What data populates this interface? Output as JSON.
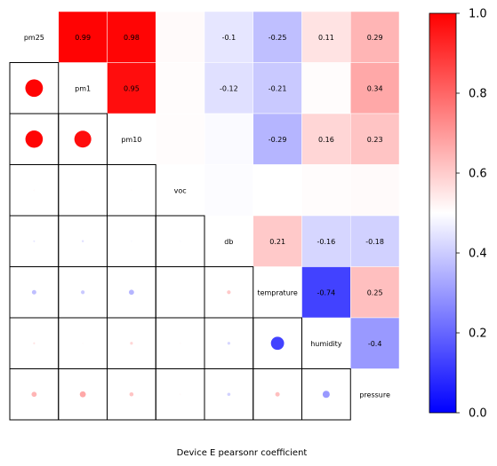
{
  "chart_data": {
    "type": "heatmap",
    "title": "",
    "xlabel": "Device E pearsonr coefficient",
    "ylabel": "",
    "variables": [
      "pm25",
      "pm1",
      "pm10",
      "voc",
      "db",
      "temprature",
      "humidity",
      "pressure"
    ],
    "value_labels": [
      {
        "row": 0,
        "col": 1,
        "value": 0.99,
        "label": "0.99"
      },
      {
        "row": 0,
        "col": 2,
        "value": 0.98,
        "label": "0.98"
      },
      {
        "row": 0,
        "col": 4,
        "value": -0.1,
        "label": "-0.1"
      },
      {
        "row": 0,
        "col": 5,
        "value": -0.25,
        "label": "-0.25"
      },
      {
        "row": 0,
        "col": 6,
        "value": 0.11,
        "label": "0.11"
      },
      {
        "row": 0,
        "col": 7,
        "value": 0.29,
        "label": "0.29"
      },
      {
        "row": 1,
        "col": 2,
        "value": 0.95,
        "label": "0.95"
      },
      {
        "row": 1,
        "col": 4,
        "value": -0.12,
        "label": "-0.12"
      },
      {
        "row": 1,
        "col": 5,
        "value": -0.21,
        "label": "-0.21"
      },
      {
        "row": 1,
        "col": 7,
        "value": 0.34,
        "label": "0.34"
      },
      {
        "row": 2,
        "col": 5,
        "value": -0.29,
        "label": "-0.29"
      },
      {
        "row": 2,
        "col": 6,
        "value": 0.16,
        "label": "0.16"
      },
      {
        "row": 2,
        "col": 7,
        "value": 0.23,
        "label": "0.23"
      },
      {
        "row": 4,
        "col": 5,
        "value": 0.21,
        "label": "0.21"
      },
      {
        "row": 4,
        "col": 6,
        "value": -0.16,
        "label": "-0.16"
      },
      {
        "row": 4,
        "col": 7,
        "value": -0.18,
        "label": "-0.18"
      },
      {
        "row": 5,
        "col": 6,
        "value": -0.74,
        "label": "-0.74"
      },
      {
        "row": 5,
        "col": 7,
        "value": 0.25,
        "label": "0.25"
      },
      {
        "row": 6,
        "col": 7,
        "value": -0.4,
        "label": "-0.4"
      }
    ],
    "unlabeled_cells": [
      {
        "row": 0,
        "col": 3,
        "value": 0.02
      },
      {
        "row": 1,
        "col": 3,
        "value": 0.01
      },
      {
        "row": 1,
        "col": 6,
        "value": 0.01
      },
      {
        "row": 2,
        "col": 3,
        "value": 0.01
      },
      {
        "row": 2,
        "col": 4,
        "value": -0.02
      },
      {
        "row": 3,
        "col": 4,
        "value": -0.01
      },
      {
        "row": 3,
        "col": 5,
        "value": 0.0
      },
      {
        "row": 3,
        "col": 6,
        "value": 0.01
      },
      {
        "row": 3,
        "col": 7,
        "value": 0.02
      }
    ],
    "colorbar": {
      "ticks": [
        0.0,
        0.2,
        0.4,
        0.6,
        0.8,
        1.0
      ],
      "tick_labels": [
        "0.0",
        "0.2",
        "0.4",
        "0.6",
        "0.8",
        "1.0"
      ],
      "colors": {
        "low": "#0000ff",
        "mid": "#ffffff",
        "high": "#ff0000"
      }
    },
    "grid": false
  }
}
